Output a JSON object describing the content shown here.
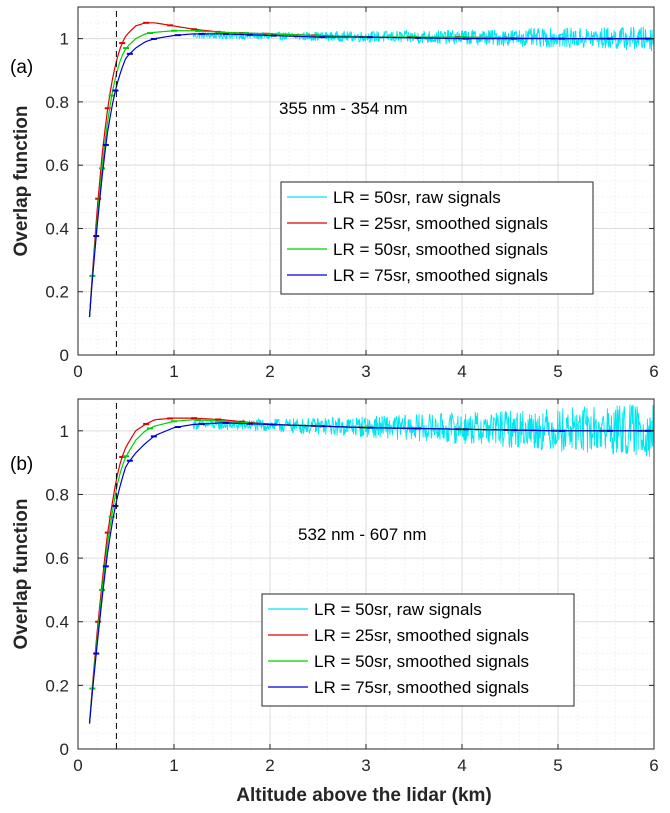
{
  "figure": {
    "xlabel": "Altitude above the lidar (km)"
  },
  "chart_data": [
    {
      "type": "line",
      "panel_label": "(a)",
      "annotation": "355 nm - 354 nm",
      "ylabel": "Overlap function",
      "xlim": [
        0,
        6
      ],
      "ylim": [
        0,
        1.1
      ],
      "xticks": [
        "0",
        "1",
        "2",
        "3",
        "4",
        "5",
        "6"
      ],
      "yticks": [
        "0",
        "0.2",
        "0.4",
        "0.6",
        "0.8",
        "1"
      ],
      "grid": true,
      "reference_line_x": 0.4,
      "legend_position": "center-right",
      "series": [
        {
          "name": "LR = 50sr, raw signals",
          "color": "#00e5ee",
          "noisy": true,
          "noise_amp": [
            0.01,
            0.04
          ],
          "x": [
            1.2,
            6.0
          ],
          "y": [
            1.01,
            1.0
          ]
        },
        {
          "name": "LR = 25sr, smoothed signals",
          "color": "#e00000",
          "x": [
            0.12,
            0.15,
            0.2,
            0.25,
            0.3,
            0.35,
            0.4,
            0.45,
            0.5,
            0.6,
            0.7,
            0.8,
            1.0,
            1.2,
            1.5,
            2.0,
            2.5,
            3.0,
            4.0,
            5.0,
            6.0
          ],
          "y": [
            0.12,
            0.26,
            0.46,
            0.63,
            0.76,
            0.86,
            0.93,
            0.98,
            1.01,
            1.04,
            1.05,
            1.05,
            1.04,
            1.03,
            1.02,
            1.015,
            1.01,
            1.005,
            1.005,
            1.0,
            1.0
          ]
        },
        {
          "name": "LR = 50sr, smoothed signals",
          "color": "#00d000",
          "x": [
            0.12,
            0.15,
            0.2,
            0.25,
            0.3,
            0.35,
            0.4,
            0.45,
            0.5,
            0.6,
            0.7,
            0.8,
            1.0,
            1.2,
            1.5,
            2.0,
            2.5,
            3.0,
            4.0,
            5.0,
            6.0
          ],
          "y": [
            0.12,
            0.25,
            0.43,
            0.59,
            0.72,
            0.82,
            0.89,
            0.94,
            0.97,
            1.0,
            1.015,
            1.02,
            1.025,
            1.025,
            1.02,
            1.015,
            1.01,
            1.005,
            1.005,
            1.0,
            1.0
          ]
        },
        {
          "name": "LR = 75sr, smoothed signals",
          "color": "#0000d0",
          "x": [
            0.12,
            0.15,
            0.2,
            0.25,
            0.3,
            0.35,
            0.4,
            0.45,
            0.5,
            0.6,
            0.7,
            0.8,
            1.0,
            1.2,
            1.5,
            2.0,
            2.5,
            3.0,
            4.0,
            5.0,
            6.0
          ],
          "y": [
            0.12,
            0.24,
            0.41,
            0.56,
            0.69,
            0.78,
            0.85,
            0.9,
            0.94,
            0.97,
            0.99,
            1.0,
            1.01,
            1.015,
            1.015,
            1.01,
            1.005,
            1.005,
            1.0,
            1.0,
            1.0
          ]
        }
      ]
    },
    {
      "type": "line",
      "panel_label": "(b)",
      "annotation": "532 nm - 607 nm",
      "ylabel": "Overlap function",
      "xlim": [
        0,
        6
      ],
      "ylim": [
        0,
        1.1
      ],
      "xticks": [
        "0",
        "1",
        "2",
        "3",
        "4",
        "5",
        "6"
      ],
      "yticks": [
        "0",
        "0.2",
        "0.4",
        "0.6",
        "0.8",
        "1"
      ],
      "grid": true,
      "reference_line_x": 0.4,
      "legend_position": "bottom-right",
      "series": [
        {
          "name": "LR = 50sr, raw signals",
          "color": "#00e5ee",
          "noisy": true,
          "noise_amp": [
            0.015,
            0.09
          ],
          "x": [
            1.2,
            6.0
          ],
          "y": [
            1.02,
            1.0
          ]
        },
        {
          "name": "LR = 25sr, smoothed signals",
          "color": "#e00000",
          "x": [
            0.12,
            0.15,
            0.2,
            0.25,
            0.3,
            0.35,
            0.4,
            0.45,
            0.5,
            0.6,
            0.7,
            0.8,
            1.0,
            1.2,
            1.5,
            2.0,
            2.5,
            3.0,
            4.0,
            5.0,
            6.0
          ],
          "y": [
            0.08,
            0.2,
            0.37,
            0.52,
            0.66,
            0.76,
            0.85,
            0.91,
            0.95,
            1.0,
            1.02,
            1.035,
            1.04,
            1.04,
            1.035,
            1.02,
            1.015,
            1.01,
            1.005,
            1.0,
            1.0
          ]
        },
        {
          "name": "LR = 50sr, smoothed signals",
          "color": "#00d000",
          "x": [
            0.12,
            0.15,
            0.2,
            0.25,
            0.3,
            0.35,
            0.4,
            0.45,
            0.5,
            0.6,
            0.7,
            0.8,
            1.0,
            1.2,
            1.5,
            2.0,
            2.5,
            3.0,
            4.0,
            5.0,
            6.0
          ],
          "y": [
            0.08,
            0.19,
            0.35,
            0.5,
            0.63,
            0.73,
            0.82,
            0.88,
            0.92,
            0.97,
            1.0,
            1.015,
            1.03,
            1.035,
            1.03,
            1.02,
            1.015,
            1.01,
            1.005,
            1.0,
            1.0
          ]
        },
        {
          "name": "LR = 75sr, smoothed signals",
          "color": "#0000d0",
          "x": [
            0.12,
            0.15,
            0.2,
            0.25,
            0.3,
            0.35,
            0.4,
            0.45,
            0.5,
            0.6,
            0.7,
            0.8,
            1.0,
            1.2,
            1.5,
            2.0,
            2.5,
            3.0,
            4.0,
            5.0,
            6.0
          ],
          "y": [
            0.08,
            0.18,
            0.33,
            0.47,
            0.6,
            0.7,
            0.78,
            0.84,
            0.89,
            0.93,
            0.96,
            0.985,
            1.01,
            1.02,
            1.025,
            1.02,
            1.015,
            1.01,
            1.005,
            1.0,
            1.0
          ]
        }
      ]
    }
  ]
}
